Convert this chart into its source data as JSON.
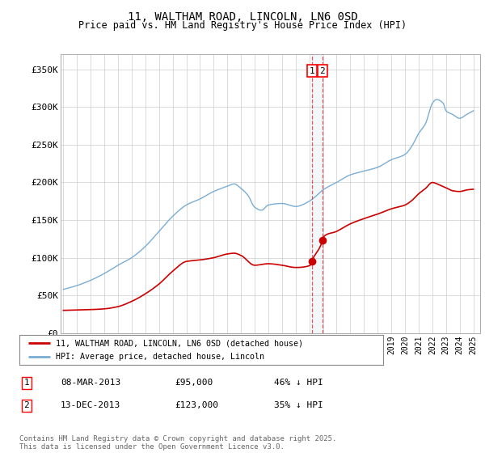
{
  "title": "11, WALTHAM ROAD, LINCOLN, LN6 0SD",
  "subtitle": "Price paid vs. HM Land Registry's House Price Index (HPI)",
  "ylabel_ticks": [
    "£0",
    "£50K",
    "£100K",
    "£150K",
    "£200K",
    "£250K",
    "£300K",
    "£350K"
  ],
  "ytick_values": [
    0,
    50000,
    100000,
    150000,
    200000,
    250000,
    300000,
    350000
  ],
  "ylim": [
    0,
    370000
  ],
  "xlim_start": 1994.8,
  "xlim_end": 2025.5,
  "hpi_color": "#7aadd4",
  "price_color": "#cc0000",
  "transaction1_date": 2013.18,
  "transaction2_date": 2013.96,
  "transaction1_price": 95000,
  "transaction2_price": 123000,
  "legend_label_price": "11, WALTHAM ROAD, LINCOLN, LN6 0SD (detached house)",
  "legend_label_hpi": "HPI: Average price, detached house, Lincoln",
  "table_row1": [
    "1",
    "08-MAR-2013",
    "£95,000",
    "46% ↓ HPI"
  ],
  "table_row2": [
    "2",
    "13-DEC-2013",
    "£123,000",
    "35% ↓ HPI"
  ],
  "footer": "Contains HM Land Registry data © Crown copyright and database right 2025.\nThis data is licensed under the Open Government Licence v3.0.",
  "background_color": "#ffffff",
  "grid_color": "#cccccc",
  "hpi_waypoints_x": [
    1995,
    1996,
    1997,
    1998,
    1999,
    2000,
    2001,
    2002,
    2003,
    2004,
    2005,
    2006,
    2007,
    2007.5,
    2008,
    2008.5,
    2009,
    2009.5,
    2010,
    2011,
    2012,
    2013,
    2013.5,
    2014,
    2015,
    2016,
    2017,
    2018,
    2019,
    2020,
    2020.5,
    2021,
    2021.5,
    2022,
    2022.3,
    2022.8,
    2023,
    2023.5,
    2024,
    2024.5,
    2025
  ],
  "hpi_waypoints_y": [
    58000,
    63000,
    70000,
    79000,
    90000,
    100000,
    115000,
    135000,
    155000,
    170000,
    178000,
    188000,
    195000,
    198000,
    192000,
    183000,
    167000,
    163000,
    170000,
    172000,
    168000,
    175000,
    182000,
    190000,
    200000,
    210000,
    215000,
    220000,
    230000,
    237000,
    248000,
    265000,
    278000,
    305000,
    310000,
    305000,
    295000,
    290000,
    285000,
    290000,
    295000
  ],
  "price_waypoints_x": [
    1995,
    1996,
    1997,
    1998,
    1999,
    2000,
    2001,
    2002,
    2003,
    2004,
    2005,
    2006,
    2007,
    2007.5,
    2008,
    2009,
    2010,
    2011,
    2012,
    2013.1,
    2013.18,
    2013.96,
    2014,
    2015,
    2016,
    2017,
    2018,
    2019,
    2020,
    2020.5,
    2021,
    2021.5,
    2022,
    2022.5,
    2023,
    2023.5,
    2024,
    2024.5,
    2025
  ],
  "price_waypoints_y": [
    30000,
    30500,
    31000,
    32000,
    35000,
    42000,
    52000,
    65000,
    82000,
    95000,
    97000,
    100000,
    105000,
    106000,
    103000,
    90000,
    92000,
    90000,
    87000,
    90000,
    95000,
    123000,
    127000,
    135000,
    145000,
    152000,
    158000,
    165000,
    170000,
    176000,
    185000,
    192000,
    200000,
    197000,
    193000,
    189000,
    188000,
    190000,
    191000
  ]
}
